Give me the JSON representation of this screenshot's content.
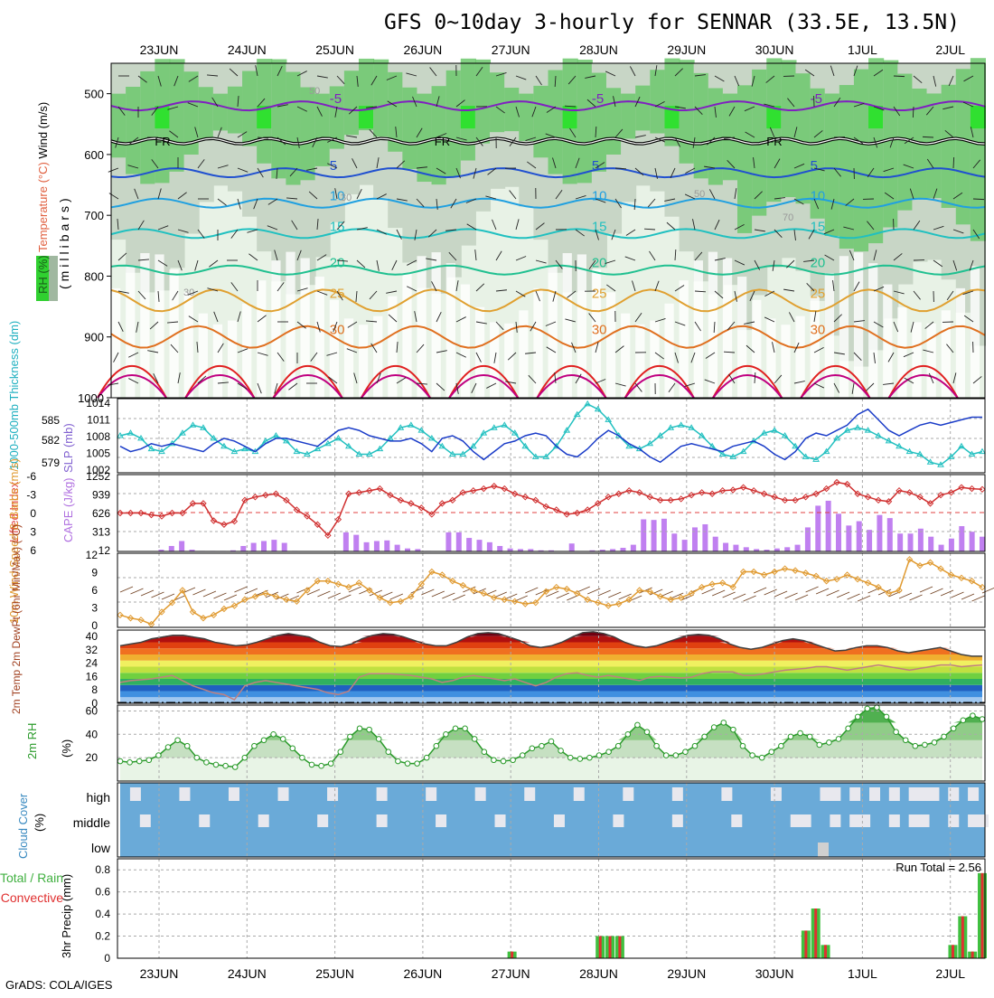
{
  "title": "GFS 0~10day 3-hourly for SENNAR (33.5E, 13.5N)",
  "footer": "GrADS: COLA/IGES",
  "dates": [
    "23JUN",
    "24JUN",
    "25JUN",
    "26JUN",
    "27JUN",
    "28JUN",
    "29JUN",
    "30JUN",
    "1JUL",
    "2JUL"
  ],
  "chart_data": [
    {
      "type": "heatmap",
      "panel": "upper-air",
      "ylabel_parts": [
        "RH (%)",
        "Temperature (°C)",
        "Wind (m/s)"
      ],
      "ylabel_unit": "(millibars)",
      "yticks": [
        500,
        600,
        700,
        800,
        900,
        1000
      ],
      "ylim": [
        1000,
        450
      ],
      "freezing_label": "FR",
      "temperature_contours": [
        {
          "label": "-5",
          "level_mb": 520
        },
        {
          "label": "5",
          "level_mb": 630
        },
        {
          "label": "10",
          "level_mb": 680
        },
        {
          "label": "15",
          "level_mb": 730
        },
        {
          "label": "20",
          "level_mb": 790
        },
        {
          "label": "25",
          "level_mb": 840
        },
        {
          "label": "30",
          "level_mb": 900
        }
      ],
      "rh_labels": [
        "30",
        "50",
        "70"
      ]
    },
    {
      "type": "line",
      "panel": "thickness-slp",
      "ylabel_left": "1000-500mb Thickness (dm)",
      "ylabel_right": "SLP (mb)",
      "left_ticks": [
        "585",
        "582",
        "579"
      ],
      "right_ticks": [
        "1014",
        "1011",
        "1008",
        "1005",
        "1002"
      ],
      "series": [
        {
          "name": "Thickness",
          "color": "#22c0c0",
          "values": [
            1008,
            1008.5,
            1007.5,
            1005.5,
            1005,
            1006.5,
            1008.5,
            1010,
            1009.5,
            1007.5,
            1006,
            1005,
            1005.5,
            1005,
            1007,
            1008,
            1007,
            1005,
            1004.5,
            1005.5,
            1006.5,
            1007.5,
            1006,
            1004.5,
            1004.5,
            1005.5,
            1007.5,
            1009.5,
            1010,
            1009,
            1007.5,
            1006,
            1004.5,
            1004.5,
            1006,
            1008.5,
            1009.5,
            1010,
            1008.5,
            1006,
            1004,
            1004,
            1006,
            1009,
            1012,
            1014,
            1013,
            1011,
            1008,
            1006,
            1005.5,
            1006.5,
            1008,
            1009.5,
            1010,
            1009.5,
            1008,
            1006,
            1004.5,
            1004,
            1005,
            1007,
            1008.5,
            1009,
            1008,
            1006,
            1004,
            1003.5,
            1005,
            1007.5,
            1009,
            1009.5,
            1009,
            1008,
            1007,
            1006,
            1005,
            1004.5,
            1003,
            1002.5,
            1004,
            1006,
            1004.5,
            1005
          ]
        },
        {
          "name": "SLP",
          "color": "#1a3cc8",
          "values": [
            1006,
            1005,
            1005.5,
            1006.5,
            1006,
            1006.5,
            1006,
            1005.5,
            1005,
            1006.5,
            1007.5,
            1007,
            1006,
            1005,
            1006.5,
            1007.5,
            1007.5,
            1007,
            1006.5,
            1006,
            1007.5,
            1009,
            1009.5,
            1009,
            1008,
            1007.5,
            1007,
            1007,
            1007.5,
            1006.5,
            1005,
            1007.5,
            1008,
            1007,
            1005,
            1003.5,
            1005,
            1006.5,
            1007,
            1008,
            1008.5,
            1008,
            1006,
            1004.5,
            1004,
            1005.5,
            1007.5,
            1009,
            1008,
            1006.5,
            1005.5,
            1004,
            1003,
            1004.5,
            1006,
            1006.5,
            1006,
            1005.5,
            1005,
            1006,
            1006.5,
            1007,
            1006,
            1004.5,
            1003.5,
            1005,
            1007.5,
            1008.5,
            1008,
            1009,
            1010,
            1012,
            1013,
            1011,
            1009,
            1008,
            1009,
            1010,
            1010.5,
            1010,
            1010.5,
            1011,
            1011.5,
            1011.5
          ]
        }
      ]
    },
    {
      "type": "bar",
      "panel": "lifted-index-cape",
      "ylabel_left": "Lifted Index",
      "ylabel_right": "CAPE (J/kg)",
      "left_ticks": [
        "-6",
        "-3",
        "0",
        "3",
        "6"
      ],
      "right_ticks": [
        "1252",
        "939",
        "626",
        "313",
        "12"
      ],
      "series": [
        {
          "name": "Lifted Index",
          "color": "#d03030",
          "values": [
            0,
            0,
            0,
            0.3,
            0.5,
            0,
            0,
            -1.5,
            -1.5,
            1.2,
            1.8,
            1.3,
            -2,
            -2.5,
            -2.8,
            -3,
            -2,
            -0.5,
            0.5,
            1.8,
            3.5,
            1,
            -3,
            -3.2,
            -3.5,
            -3.8,
            -2.8,
            -2,
            -1.5,
            -0.8,
            0.2,
            -1.5,
            -2,
            -3.2,
            -3.5,
            -3.8,
            -4.2,
            -3.8,
            -3,
            -2.5,
            -2,
            -1,
            -0.5,
            0.2,
            0,
            -0.5,
            -1.5,
            -2.5,
            -3,
            -3.5,
            -3.2,
            -2.5,
            -2,
            -2,
            -2.2,
            -2.8,
            -3.2,
            -3,
            -3.5,
            -3.6,
            -4,
            -3.5,
            -3,
            -2.5,
            -2,
            -2,
            -2.5,
            -3,
            -3.8,
            -4.8,
            -4.5,
            -3,
            -2.5,
            -2,
            -1.8,
            -3.5,
            -3.2,
            -2.5,
            -1.5,
            -2.8,
            -3.2,
            -4,
            -3.8,
            -3.7
          ]
        },
        {
          "name": "CAPE",
          "color": "#c080f0",
          "values": [
            12,
            12,
            12,
            12,
            40,
            100,
            180,
            40,
            20,
            20,
            20,
            30,
            100,
            150,
            180,
            200,
            150,
            20,
            12,
            12,
            12,
            12,
            320,
            280,
            160,
            180,
            190,
            120,
            60,
            50,
            20,
            12,
            320,
            320,
            230,
            200,
            160,
            100,
            60,
            50,
            50,
            30,
            30,
            12,
            140,
            12,
            30,
            40,
            50,
            70,
            120,
            530,
            520,
            540,
            300,
            200,
            400,
            450,
            250,
            150,
            120,
            80,
            50,
            40,
            60,
            80,
            120,
            400,
            750,
            830,
            620,
            430,
            500,
            360,
            600,
            550,
            300,
            300,
            380,
            250,
            120,
            220,
            420,
            330,
            250
          ]
        }
      ]
    },
    {
      "type": "line",
      "panel": "10m-wind",
      "ylabel": "10m Wind Speed & Barbs (m/s)",
      "yticks": [
        "12",
        "9",
        "6",
        "3",
        "0"
      ],
      "ylim": [
        0,
        12
      ],
      "series": [
        {
          "name": "Speed",
          "color": "#e09a30",
          "values": [
            2,
            1.5,
            1.2,
            0.5,
            2.5,
            4,
            6,
            2.5,
            1.5,
            2,
            3,
            3.5,
            4.5,
            5,
            5.5,
            5,
            4.5,
            4.2,
            6,
            7.5,
            7.5,
            7,
            6.5,
            7.2,
            6,
            4.8,
            4,
            4.2,
            5,
            7,
            9,
            8.5,
            7.5,
            6.8,
            6,
            5.5,
            4.8,
            4.5,
            4.2,
            3.8,
            4,
            5.8,
            6.5,
            6.2,
            5.5,
            4.5,
            4,
            3.5,
            3.8,
            4.5,
            6,
            5.8,
            5,
            4.5,
            4.8,
            5.5,
            6.5,
            7,
            7.2,
            6.5,
            9,
            9,
            8.5,
            9,
            9.5,
            9.2,
            8.8,
            8.3,
            7.5,
            7.8,
            8.5,
            7.8,
            7.2,
            6.5,
            5.5,
            6,
            11,
            10,
            10.5,
            9.5,
            8.5,
            8,
            7.5,
            6.5
          ]
        }
      ]
    },
    {
      "type": "area",
      "panel": "2m-temp",
      "ylabel": "2m Temp 2m DewPt (6hr Min/Max) (°C)",
      "yticks": [
        "40",
        "32",
        "24",
        "16",
        "8",
        "0"
      ],
      "ylim": [
        0,
        42
      ],
      "series": [
        {
          "name": "2m Temp",
          "color": "#606060",
          "values": [
            33,
            34,
            35,
            37,
            38,
            39,
            39,
            38,
            37,
            35,
            34,
            33,
            33.5,
            35,
            37,
            39,
            40,
            39,
            38,
            35,
            33,
            32.5,
            34,
            37,
            39,
            40,
            39.5,
            38,
            36,
            34,
            33,
            33,
            35,
            38,
            40,
            40.5,
            40,
            38,
            36,
            33,
            32,
            33,
            35,
            38,
            40.5,
            41,
            40,
            38,
            35,
            33,
            32,
            33,
            35,
            37,
            39,
            39.5,
            39,
            37,
            34,
            32,
            31,
            32,
            34,
            36,
            37,
            36,
            34,
            32,
            30,
            30.5,
            32,
            33,
            33,
            32,
            30,
            29,
            30,
            31,
            32,
            30,
            28,
            27,
            27
          ]
        },
        {
          "name": "2m DewPt",
          "color": "#c08080",
          "values": [
            12,
            13,
            13.5,
            14,
            15,
            16,
            13,
            10,
            8,
            6,
            5,
            2,
            10,
            12,
            13,
            12,
            11,
            10,
            9,
            8,
            6,
            5,
            7,
            15,
            17,
            17,
            17,
            16.5,
            16,
            15,
            14,
            12,
            13,
            15,
            16,
            15,
            14,
            13,
            14,
            12,
            10,
            12,
            15,
            17,
            17.5,
            16,
            15,
            16,
            15,
            14,
            13,
            15,
            15.5,
            15,
            14.5,
            15,
            17,
            18,
            18,
            18,
            16,
            16,
            17,
            18,
            19,
            19.5,
            20,
            21,
            21,
            20,
            19,
            20,
            21,
            22,
            21,
            20,
            19,
            20,
            21,
            22,
            22,
            21,
            21.5,
            22
          ]
        }
      ]
    },
    {
      "type": "line",
      "panel": "2m-rh",
      "ylabel": "2m RH (%)",
      "yticks": [
        "60",
        "40",
        "20"
      ],
      "ylim": [
        0,
        65
      ],
      "series": [
        {
          "name": "2m RH",
          "color": "#2a9a2a",
          "values": [
            17,
            16,
            17,
            18,
            22,
            29,
            35,
            30,
            20,
            16,
            14,
            13,
            12,
            20,
            30,
            35,
            40,
            36,
            28,
            20,
            14,
            13,
            15,
            25,
            38,
            45,
            44,
            36,
            25,
            17,
            15,
            15,
            20,
            30,
            40,
            45,
            45,
            36,
            25,
            18,
            17,
            18,
            22,
            28,
            30,
            34,
            26,
            20,
            19,
            20,
            22,
            25,
            30,
            40,
            48,
            42,
            30,
            22,
            22,
            25,
            30,
            38,
            46,
            50,
            44,
            30,
            22,
            20,
            25,
            30,
            38,
            41,
            38,
            31,
            33,
            36,
            45,
            55,
            62,
            63,
            55,
            42,
            35,
            30,
            31,
            33,
            38,
            45,
            52,
            56,
            53
          ]
        }
      ]
    },
    {
      "type": "heatmap",
      "panel": "cloud-cover",
      "ylabel": "Cloud Cover (%)",
      "row_labels": [
        "high",
        "middle",
        "low"
      ]
    },
    {
      "type": "bar",
      "panel": "precip",
      "ylabel_left": "Total / Rain Convective",
      "ylabel": "3hr Precip (mm)",
      "yticks": [
        "0.8",
        "0.6",
        "0.4",
        "0.2",
        "0"
      ],
      "ylim": [
        0,
        0.9
      ],
      "run_total": "Run Total = 2.56",
      "values": [
        0,
        0,
        0,
        0,
        0,
        0,
        0,
        0,
        0,
        0,
        0,
        0,
        0,
        0,
        0,
        0,
        0,
        0,
        0,
        0,
        0,
        0,
        0,
        0,
        0,
        0,
        0,
        0,
        0,
        0,
        0,
        0,
        0,
        0,
        0,
        0,
        0,
        0,
        0,
        0,
        0.06,
        0,
        0,
        0,
        0,
        0,
        0,
        0,
        0,
        0.2,
        0.2,
        0.2,
        0,
        0,
        0,
        0,
        0,
        0,
        0,
        0,
        0,
        0,
        0,
        0,
        0,
        0,
        0,
        0,
        0,
        0,
        0.25,
        0.45,
        0.12,
        0,
        0,
        0,
        0,
        0,
        0,
        0,
        0,
        0,
        0,
        0,
        0,
        0.12,
        0.38,
        0.06,
        0.77
      ]
    }
  ]
}
